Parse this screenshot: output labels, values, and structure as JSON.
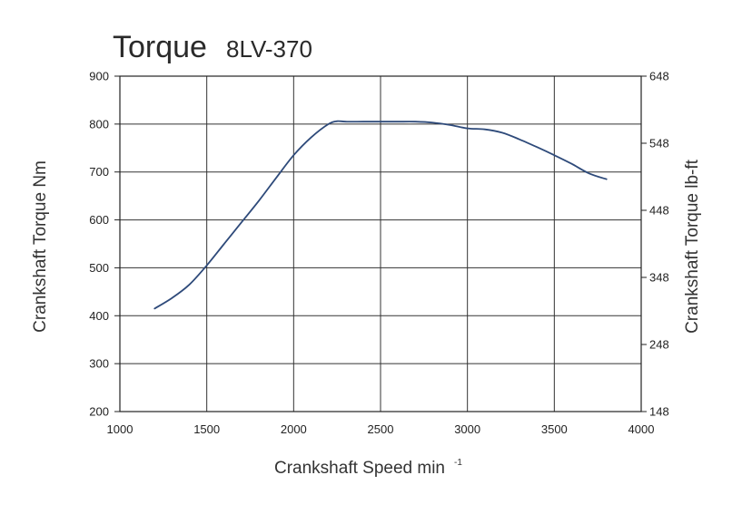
{
  "chart_data": {
    "type": "line",
    "title": "Torque",
    "subtitle": "8LV-370",
    "xlabel": "Crankshaft Speed min",
    "xlabel_superscript": "-1",
    "ylabel": "Crankshaft Torque  Nm",
    "y2label": "Crankshaft Torque  lb-ft",
    "xlim": [
      1000,
      4000
    ],
    "ylim": [
      200,
      900
    ],
    "y2lim": [
      148,
      648
    ],
    "xticks": [
      "1000",
      "1500",
      "2000",
      "2500",
      "3000",
      "3500",
      "4000"
    ],
    "yticks": [
      "200",
      "300",
      "400",
      "500",
      "600",
      "700",
      "800",
      "900"
    ],
    "y2ticks": [
      "148",
      "248",
      "348",
      "448",
      "548",
      "648"
    ],
    "grid": true,
    "series": [
      {
        "color": "#2e4a7a",
        "x": [
          1200,
          1300,
          1400,
          1500,
          1600,
          1700,
          1800,
          1900,
          2000,
          2100,
          2200,
          2250,
          2300,
          2400,
          2500,
          2600,
          2700,
          2800,
          2900,
          3000,
          3100,
          3200,
          3300,
          3400,
          3500,
          3600,
          3700,
          3800
        ],
        "y": [
          415,
          437,
          465,
          505,
          550,
          595,
          640,
          688,
          735,
          772,
          800,
          806,
          805,
          805,
          805,
          805,
          805,
          803,
          798,
          791,
          789,
          782,
          768,
          752,
          735,
          717,
          697,
          685
        ]
      }
    ]
  }
}
